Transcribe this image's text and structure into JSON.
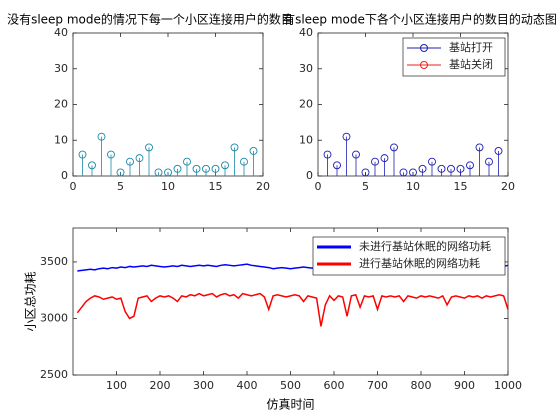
{
  "chart_data": [
    {
      "type": "stem",
      "title": "没有sleep mode的情况下每一个小区连接用户的数目",
      "x": [
        1,
        2,
        3,
        4,
        5,
        6,
        7,
        8,
        9,
        10,
        11,
        12,
        13,
        14,
        15,
        16,
        17,
        18,
        19
      ],
      "values": [
        6,
        3,
        11,
        6,
        1,
        4,
        5,
        8,
        1,
        1,
        2,
        4,
        2,
        2,
        2,
        3,
        8,
        4,
        7
      ],
      "color": "#1a8aa8",
      "xlim": [
        0,
        20
      ],
      "xticks": [
        0,
        5,
        10,
        15,
        20
      ],
      "ylim": [
        0,
        40
      ],
      "yticks": [
        0,
        10,
        20,
        30,
        40
      ]
    },
    {
      "type": "stem",
      "title": "有sleep mode下各个小区连接用户的数目的动态图",
      "x": [
        1,
        2,
        3,
        4,
        5,
        6,
        7,
        8,
        9,
        10,
        11,
        12,
        13,
        14,
        15,
        16,
        17,
        18,
        19
      ],
      "series": [
        {
          "name": "基站打开",
          "color": "#1f1fb4",
          "values": [
            6,
            3,
            11,
            6,
            1,
            4,
            5,
            8,
            1,
            1,
            2,
            4,
            2,
            2,
            2,
            3,
            8,
            4,
            7
          ]
        },
        {
          "name": "基站关闭",
          "color": "#e6231f"
        }
      ],
      "xlim": [
        0,
        20
      ],
      "xticks": [
        0,
        5,
        10,
        15,
        20
      ],
      "ylim": [
        0,
        40
      ],
      "yticks": [
        0,
        10,
        20,
        30,
        40
      ]
    },
    {
      "type": "line",
      "xlabel": "仿真时间",
      "ylabel": "小区总功耗",
      "x": [
        10,
        20,
        30,
        40,
        50,
        60,
        70,
        80,
        90,
        100,
        110,
        120,
        130,
        140,
        150,
        160,
        170,
        180,
        190,
        200,
        210,
        220,
        230,
        240,
        250,
        260,
        270,
        280,
        290,
        300,
        310,
        320,
        330,
        340,
        350,
        360,
        370,
        380,
        390,
        400,
        410,
        420,
        430,
        440,
        450,
        460,
        470,
        480,
        490,
        500,
        510,
        520,
        530,
        540,
        550,
        560,
        570,
        580,
        590,
        600,
        610,
        620,
        630,
        640,
        650,
        660,
        670,
        680,
        690,
        700,
        710,
        720,
        730,
        740,
        750,
        760,
        770,
        780,
        790,
        800,
        810,
        820,
        830,
        840,
        850,
        860,
        870,
        880,
        890,
        900,
        910,
        920,
        930,
        940,
        950,
        960,
        970,
        980,
        990,
        1000
      ],
      "series": [
        {
          "name": "未进行基站休眠的网络功耗",
          "color": "#0000ff",
          "values": [
            3420,
            3425,
            3430,
            3435,
            3430,
            3440,
            3445,
            3440,
            3450,
            3445,
            3455,
            3450,
            3460,
            3455,
            3460,
            3465,
            3460,
            3470,
            3465,
            3460,
            3455,
            3460,
            3465,
            3460,
            3470,
            3465,
            3460,
            3465,
            3470,
            3465,
            3470,
            3465,
            3460,
            3470,
            3475,
            3470,
            3465,
            3470,
            3475,
            3480,
            3470,
            3465,
            3460,
            3455,
            3450,
            3440,
            3445,
            3450,
            3445,
            3440,
            3445,
            3450,
            3455,
            3450,
            3445,
            3450,
            3455,
            3460,
            3450,
            3445,
            3450,
            3455,
            3450,
            3445,
            3450,
            3455,
            3460,
            3455,
            3450,
            3445,
            3440,
            3445,
            3450,
            3455,
            3450,
            3445,
            3450,
            3445,
            3440,
            3445,
            3450,
            3455,
            3450,
            3445,
            3450,
            3455,
            3450,
            3445,
            3440,
            3445,
            3450,
            3455,
            3450,
            3445,
            3450,
            3455,
            3445,
            3450,
            3460,
            3470
          ]
        },
        {
          "name": "进行基站休眠的网络功耗",
          "color": "#ff0000",
          "values": [
            3050,
            3100,
            3150,
            3180,
            3200,
            3190,
            3170,
            3180,
            3190,
            3170,
            3180,
            3060,
            3000,
            3020,
            3180,
            3190,
            3200,
            3150,
            3180,
            3200,
            3190,
            3200,
            3180,
            3150,
            3200,
            3190,
            3210,
            3200,
            3220,
            3200,
            3210,
            3220,
            3190,
            3210,
            3220,
            3200,
            3210,
            3180,
            3220,
            3210,
            3200,
            3210,
            3220,
            3190,
            3080,
            3200,
            3210,
            3200,
            3190,
            3200,
            3210,
            3200,
            3150,
            3200,
            3190,
            3180,
            2930,
            3120,
            3200,
            3160,
            3200,
            3190,
            3020,
            3200,
            3210,
            3100,
            3200,
            3190,
            3200,
            3080,
            3200,
            3190,
            3200,
            3190,
            3200,
            3150,
            3200,
            3190,
            3180,
            3200,
            3190,
            3200,
            3190,
            3180,
            3200,
            3120,
            3190,
            3200,
            3190,
            3180,
            3200,
            3190,
            3200,
            3180,
            3200,
            3190,
            3200,
            3210,
            3200,
            3080
          ]
        }
      ],
      "xlim": [
        0,
        1000
      ],
      "xticks": [
        100,
        200,
        300,
        400,
        500,
        600,
        700,
        800,
        900,
        1000
      ],
      "ylim": [
        2500,
        3800
      ],
      "yticks": [
        2500,
        3000,
        3500
      ]
    }
  ]
}
